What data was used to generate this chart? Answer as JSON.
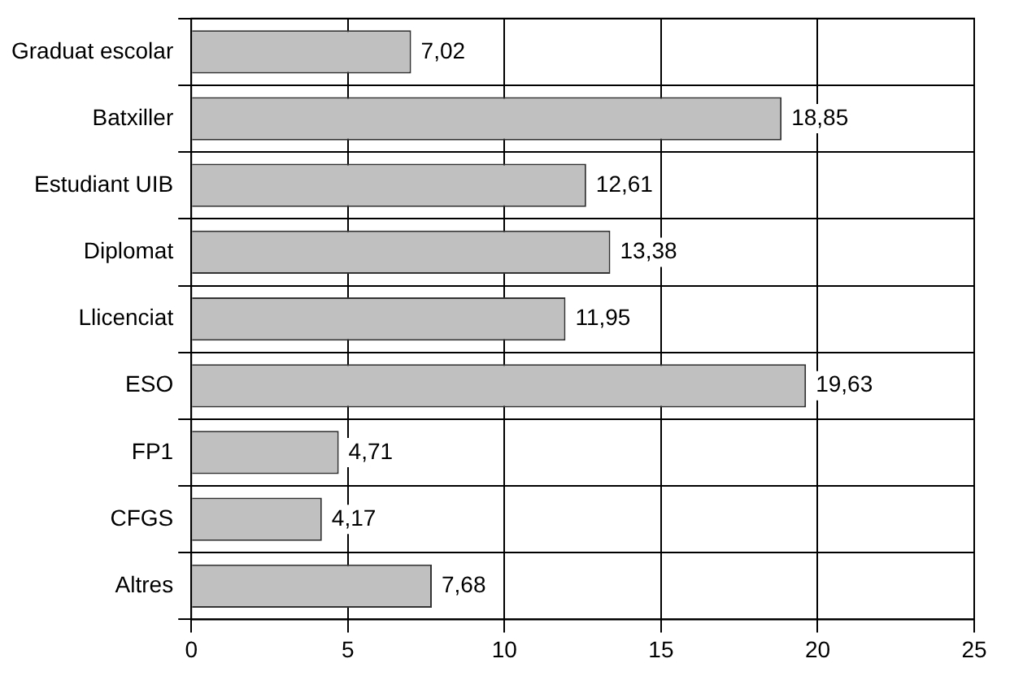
{
  "chart_data": {
    "type": "bar",
    "orientation": "horizontal",
    "categories": [
      "Graduat escolar",
      "Batxiller",
      "Estudiant UIB",
      "Diplomat",
      "Llicenciat",
      "ESO",
      "FP1",
      "CFGS",
      "Altres"
    ],
    "values": [
      7.02,
      18.85,
      12.61,
      13.38,
      11.95,
      19.63,
      4.71,
      4.17,
      7.68
    ],
    "value_labels": [
      "7,02",
      "18,85",
      "12,61",
      "13,38",
      "11,95",
      "19,63",
      "4,71",
      "4,17",
      "7,68"
    ],
    "color": "#c0c0c0",
    "xlim": [
      0,
      25
    ],
    "xticks": [
      0,
      5,
      10,
      15,
      20,
      25
    ],
    "grid": true,
    "legend": false
  }
}
